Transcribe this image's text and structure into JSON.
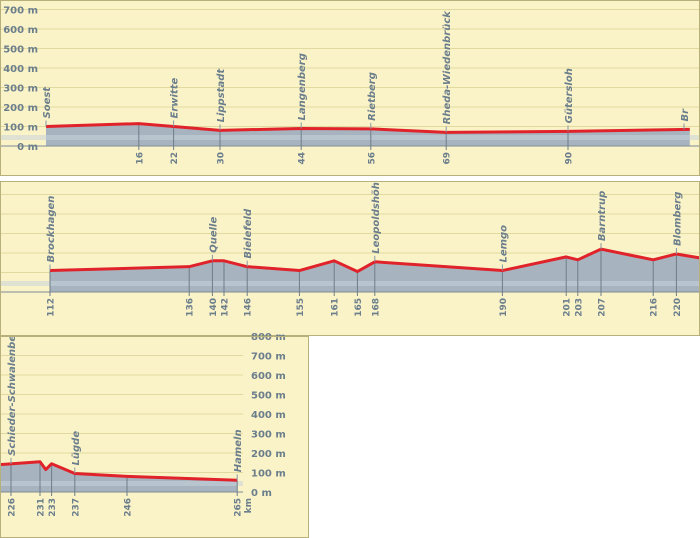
{
  "chart_data": [
    {
      "type": "area",
      "panel": "top",
      "title": "",
      "xlabel": "",
      "ylabel": "",
      "ylim": [
        0,
        750
      ],
      "y_ticks": [
        "0 m",
        "100 m",
        "200 m",
        "300 m",
        "400 m",
        "500 m",
        "600 m",
        "700 m"
      ],
      "x_ticks": [
        16,
        22,
        30,
        44,
        56,
        69,
        90
      ],
      "places": [
        {
          "name": "Soest",
          "km": 0
        },
        {
          "name": "Erwitte",
          "km": 22
        },
        {
          "name": "Lippstadt",
          "km": 30
        },
        {
          "name": "Langenberg",
          "km": 44
        },
        {
          "name": "Rietberg",
          "km": 56
        },
        {
          "name": "Rheda-Wiedenbrück",
          "km": 69
        },
        {
          "name": "Gütersloh",
          "km": 90
        },
        {
          "name": "Br",
          "km": 110
        }
      ],
      "profile": [
        [
          0,
          100
        ],
        [
          16,
          115
        ],
        [
          22,
          100
        ],
        [
          30,
          80
        ],
        [
          44,
          90
        ],
        [
          56,
          88
        ],
        [
          69,
          70
        ],
        [
          90,
          75
        ],
        [
          111,
          85
        ]
      ]
    },
    {
      "type": "area",
      "panel": "middle",
      "title": "",
      "xlabel": "",
      "ylabel": "",
      "ylim": [
        0,
        750
      ],
      "x_ticks": [
        112,
        136,
        140,
        142,
        146,
        155,
        161,
        165,
        168,
        190,
        201,
        203,
        207,
        216,
        220
      ],
      "places": [
        {
          "name": "Brockhagen",
          "km": 112
        },
        {
          "name": "Quelle",
          "km": 140
        },
        {
          "name": "Bielefeld",
          "km": 146
        },
        {
          "name": "Leopoldshöhe",
          "km": 168
        },
        {
          "name": "Lemgo",
          "km": 190
        },
        {
          "name": "Barntrup",
          "km": 207
        },
        {
          "name": "Blomberg",
          "km": 220
        }
      ],
      "profile": [
        [
          112,
          110
        ],
        [
          136,
          130
        ],
        [
          140,
          160
        ],
        [
          142,
          160
        ],
        [
          146,
          130
        ],
        [
          155,
          110
        ],
        [
          161,
          160
        ],
        [
          165,
          105
        ],
        [
          168,
          155
        ],
        [
          190,
          110
        ],
        [
          201,
          180
        ],
        [
          203,
          165
        ],
        [
          207,
          220
        ],
        [
          216,
          165
        ],
        [
          220,
          195
        ],
        [
          224,
          175
        ]
      ]
    },
    {
      "type": "area",
      "panel": "bottom",
      "title": "",
      "xlabel": "",
      "ylabel": "",
      "ylim": [
        0,
        850
      ],
      "y_ticks": [
        "0 m",
        "100 m",
        "200 m",
        "300 m",
        "400 m",
        "500 m",
        "600 m",
        "700 m",
        "800 m"
      ],
      "x_ticks": [
        226,
        231,
        233,
        237,
        246,
        265
      ],
      "x_unit": "km",
      "places": [
        {
          "name": "Schieder-Schwalenberg",
          "km": 226
        },
        {
          "name": "Lügde",
          "km": 237
        },
        {
          "name": "Hameln",
          "km": 265
        }
      ],
      "profile": [
        [
          224,
          140
        ],
        [
          231,
          155
        ],
        [
          232,
          115
        ],
        [
          233,
          145
        ],
        [
          237,
          95
        ],
        [
          246,
          80
        ],
        [
          265,
          60
        ]
      ]
    }
  ],
  "colors": {
    "background": "#ffffff",
    "panel_fill": "#fbf3c8",
    "grid": "#e2d99e",
    "frame": "#b8b07a",
    "area_fill": "#a7b4bf",
    "area_band": "#c9d3da",
    "profile_line": "#e0232b",
    "text": "#6b7e8c"
  }
}
